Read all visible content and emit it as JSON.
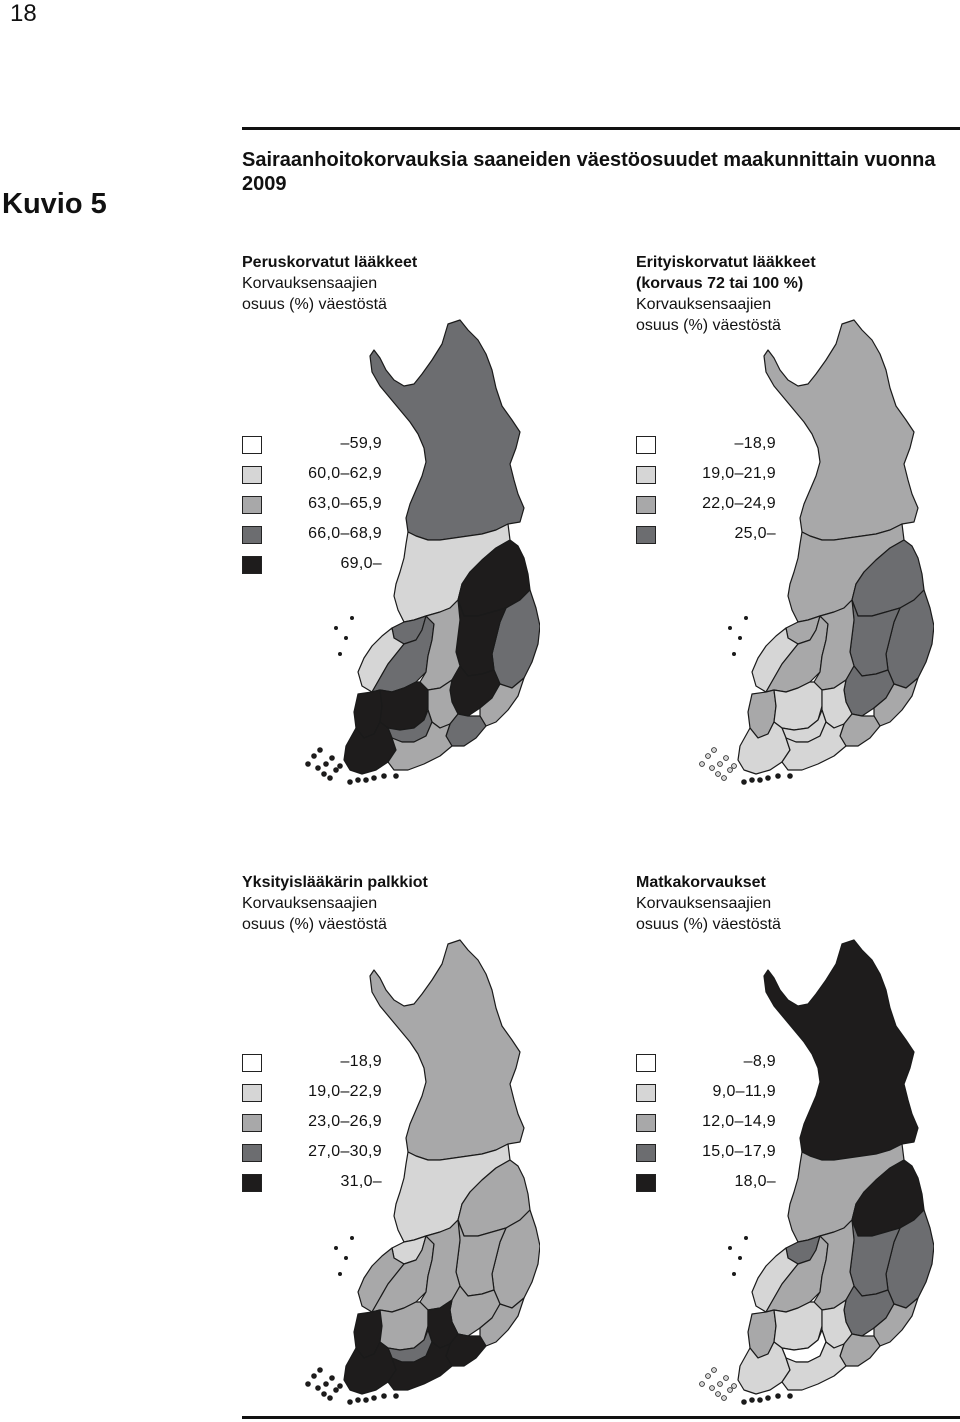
{
  "page_number": "18",
  "figure_label": "Kuvio 5",
  "figure_title": "Sairaanhoitokorvauksia saaneiden väestöosuudet maakunnittain vuonna 2009",
  "colors": {
    "class1": "#ffffff",
    "class2": "#d6d6d6",
    "class3": "#a8a8a9",
    "class4": "#6c6d70",
    "class5": "#1e1c1c",
    "border": "#1a1a1a"
  },
  "panels": [
    {
      "id": "peruskorvatut",
      "title_bold": "Peruskorvatut lääkkeet",
      "title_lines": [
        "Korvauksensaajien",
        "osuus (%) väestöstä"
      ],
      "legend": [
        "–59,9",
        "60,0–62,9",
        "63,0–65,9",
        "66,0–68,9",
        "69,0–"
      ],
      "region_classes": {
        "lappi": 4,
        "pohjois_pohjanmaa": 2,
        "kainuu": 5,
        "keski_pohjanmaa": 4,
        "pohjanmaa": 2,
        "etela_pohjanmaa": 4,
        "keski_suomi": 3,
        "pohjois_savo": 5,
        "pohjois_karjala": 4,
        "etela_savo": 5,
        "satakunta": 5,
        "pirkanmaa": 5,
        "kanta_hame": 4,
        "paijat_hame": 3,
        "kymenlaakso": 4,
        "etela_karjala": 3,
        "varsinais_suomi": 5,
        "uusimaa": 3,
        "ahvenanmaa": 5
      }
    },
    {
      "id": "erityiskorvatut",
      "title_bold": "Erityiskorvatut lääkkeet",
      "title_bold2": "(korvaus 72 tai 100 %)",
      "title_lines": [
        "Korvauksensaajien",
        "osuus (%) väestöstä"
      ],
      "legend": [
        "–18,9",
        "19,0–21,9",
        "22,0–24,9",
        "25,0–"
      ],
      "region_classes": {
        "lappi": 3,
        "pohjois_pohjanmaa": 3,
        "kainuu": 4,
        "keski_pohjanmaa": 3,
        "pohjanmaa": 2,
        "etela_pohjanmaa": 3,
        "keski_suomi": 3,
        "pohjois_savo": 4,
        "pohjois_karjala": 4,
        "etela_savo": 4,
        "satakunta": 3,
        "pirkanmaa": 2,
        "kanta_hame": 2,
        "paijat_hame": 2,
        "kymenlaakso": 3,
        "etela_karjala": 3,
        "varsinais_suomi": 2,
        "uusimaa": 2,
        "ahvenanmaa": 2
      }
    },
    {
      "id": "yksityislaakari",
      "title_bold": "Yksityislääkärin palkkiot",
      "title_lines": [
        "Korvauksensaajien",
        "osuus (%) väestöstä"
      ],
      "legend": [
        "–18,9",
        "19,0–22,9",
        "23,0–26,9",
        "27,0–30,9",
        "31,0–"
      ],
      "region_classes": {
        "lappi": 3,
        "pohjois_pohjanmaa": 2,
        "kainuu": 3,
        "keski_pohjanmaa": 2,
        "pohjanmaa": 3,
        "etela_pohjanmaa": 3,
        "keski_suomi": 3,
        "pohjois_savo": 3,
        "pohjois_karjala": 3,
        "etela_savo": 3,
        "satakunta": 5,
        "pirkanmaa": 3,
        "kanta_hame": 4,
        "paijat_hame": 5,
        "kymenlaakso": 5,
        "etela_karjala": 3,
        "varsinais_suomi": 5,
        "uusimaa": 5,
        "ahvenanmaa": 5
      }
    },
    {
      "id": "matkakorvaukset",
      "title_bold": "Matkakorvaukset",
      "title_lines": [
        "Korvauksensaajien",
        "osuus (%) väestöstä"
      ],
      "legend": [
        "–8,9",
        "9,0–11,9",
        "12,0–14,9",
        "15,0–17,9",
        "18,0–"
      ],
      "region_classes": {
        "lappi": 5,
        "pohjois_pohjanmaa": 3,
        "kainuu": 5,
        "keski_pohjanmaa": 4,
        "pohjanmaa": 2,
        "etela_pohjanmaa": 3,
        "keski_suomi": 3,
        "pohjois_savo": 4,
        "pohjois_karjala": 4,
        "etela_savo": 4,
        "satakunta": 3,
        "pirkanmaa": 2,
        "kanta_hame": 1,
        "paijat_hame": 2,
        "kymenlaakso": 3,
        "etela_karjala": 3,
        "varsinais_suomi": 2,
        "uusimaa": 2,
        "ahvenanmaa": 2
      }
    }
  ]
}
